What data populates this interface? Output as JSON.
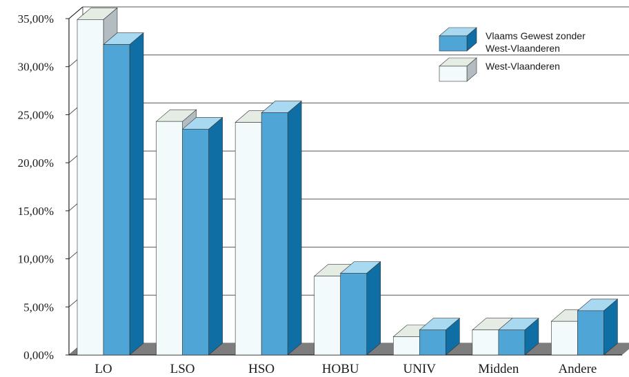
{
  "chart_data": {
    "type": "bar",
    "categories": [
      "LO",
      "LSO",
      "HSO",
      "HOBU",
      "UNIV",
      "Midden",
      "Andere"
    ],
    "series": [
      {
        "name": "West-Vlaanderen",
        "values": [
          34.9,
          24.3,
          24.2,
          8.2,
          1.9,
          2.6,
          3.5
        ]
      },
      {
        "name": "Vlaams Gewest zonder West-Vlaanderen",
        "values": [
          32.3,
          23.5,
          25.2,
          8.5,
          2.6,
          2.6,
          4.6
        ]
      }
    ],
    "ylim": [
      0,
      35
    ],
    "y_ticks": [
      "0,00%",
      "5,00%",
      "10,00%",
      "15,00%",
      "20,00%",
      "25,00%",
      "30,00%",
      "35,00%"
    ],
    "legend": {
      "placement": "top-right",
      "entries": [
        {
          "label_lines": [
            "Vlaams Gewest zonder",
            "West-Vlaanderen"
          ],
          "series": 1
        },
        {
          "label_lines": [
            "West-Vlaanderen"
          ],
          "series": 0
        }
      ]
    },
    "grid": true,
    "style": "3d",
    "colors": {
      "west_front": "#f3fafc",
      "west_top": "#e5ece4",
      "west_side": "#b3bcc0",
      "vlaams_front": "#4fa6d6",
      "vlaams_top": "#a8d9f1",
      "vlaams_side": "#0f6fa4",
      "floor": "#7d7d7d",
      "grid": "#555555",
      "axis": "#222222"
    }
  }
}
